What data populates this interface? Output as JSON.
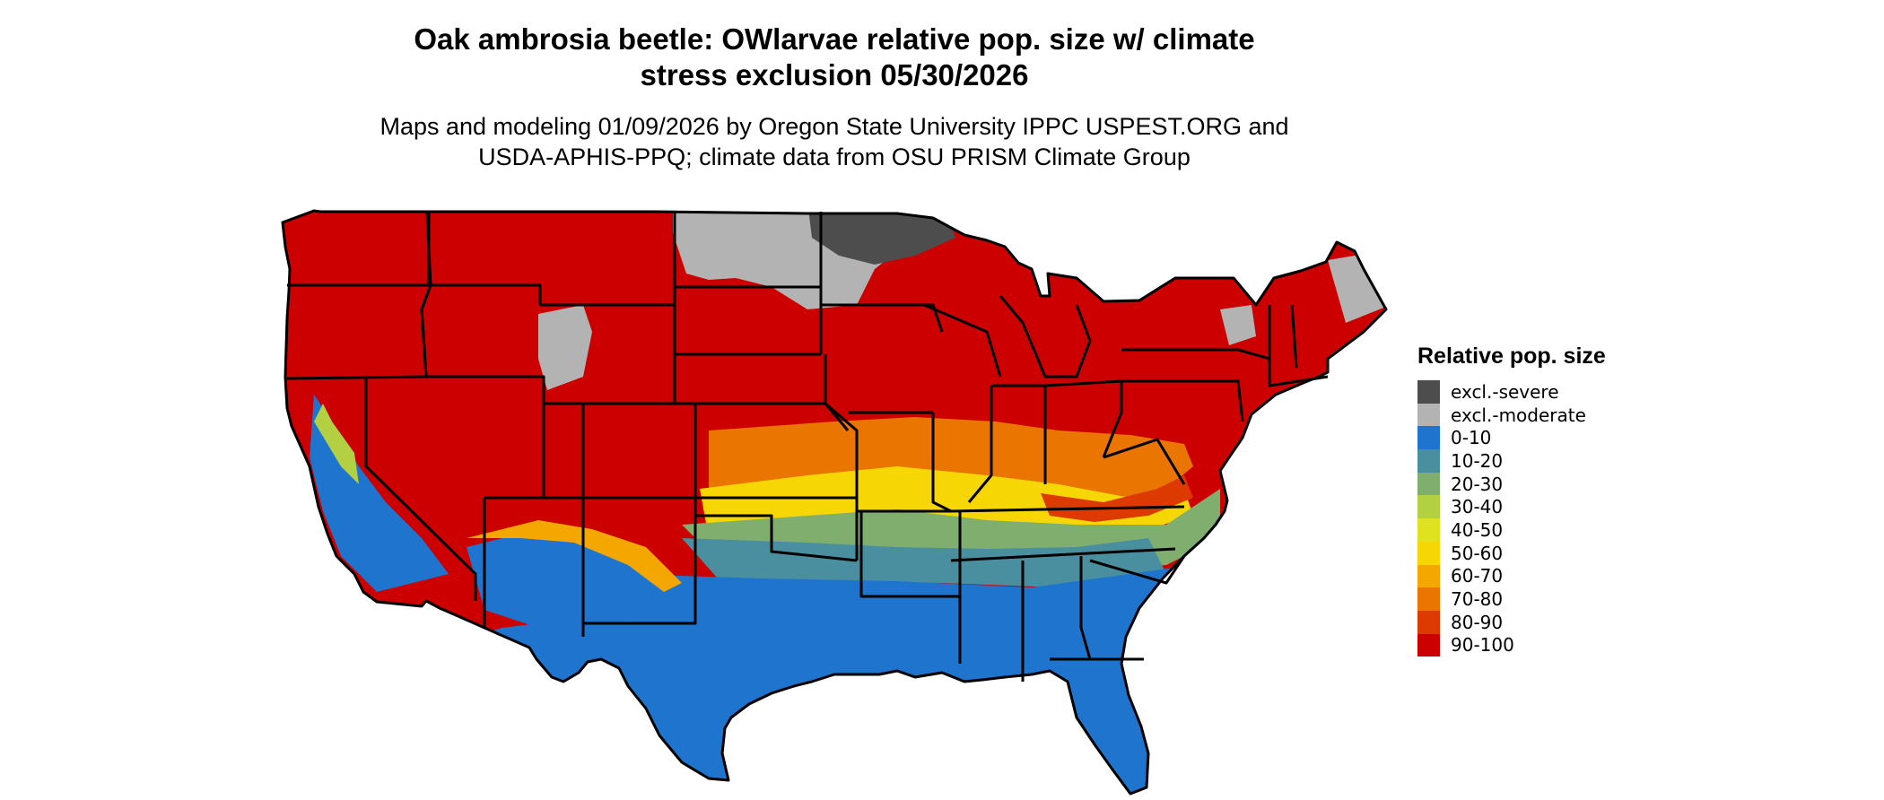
{
  "map": {
    "title_line1": "Oak ambrosia beetle: OWlarvae relative pop. size w/ climate",
    "title_line2": "stress exclusion 05/30/2026",
    "subtitle_line1": "Maps and modeling 01/09/2026 by Oregon State University IPPC USPEST.ORG and",
    "subtitle_line2": "USDA-APHIS-PPQ; climate data from OSU PRISM Climate Group",
    "region": "Contiguous United States"
  },
  "legend": {
    "title": "Relative pop. size",
    "items": [
      {
        "label": "excl.-severe",
        "color": "#4d4d4d"
      },
      {
        "label": "excl.-moderate",
        "color": "#b3b3b3"
      },
      {
        "label": "0-10",
        "color": "#1f75cd"
      },
      {
        "label": "10-20",
        "color": "#4a8fa0"
      },
      {
        "label": "20-30",
        "color": "#7fae6e"
      },
      {
        "label": "30-40",
        "color": "#b3cf42"
      },
      {
        "label": "40-50",
        "color": "#dfe31f"
      },
      {
        "label": "50-60",
        "color": "#f6d705"
      },
      {
        "label": "60-70",
        "color": "#f3a700"
      },
      {
        "label": "70-80",
        "color": "#ea7500"
      },
      {
        "label": "80-90",
        "color": "#dc3a00"
      },
      {
        "label": "90-100",
        "color": "#cc0000"
      }
    ]
  }
}
